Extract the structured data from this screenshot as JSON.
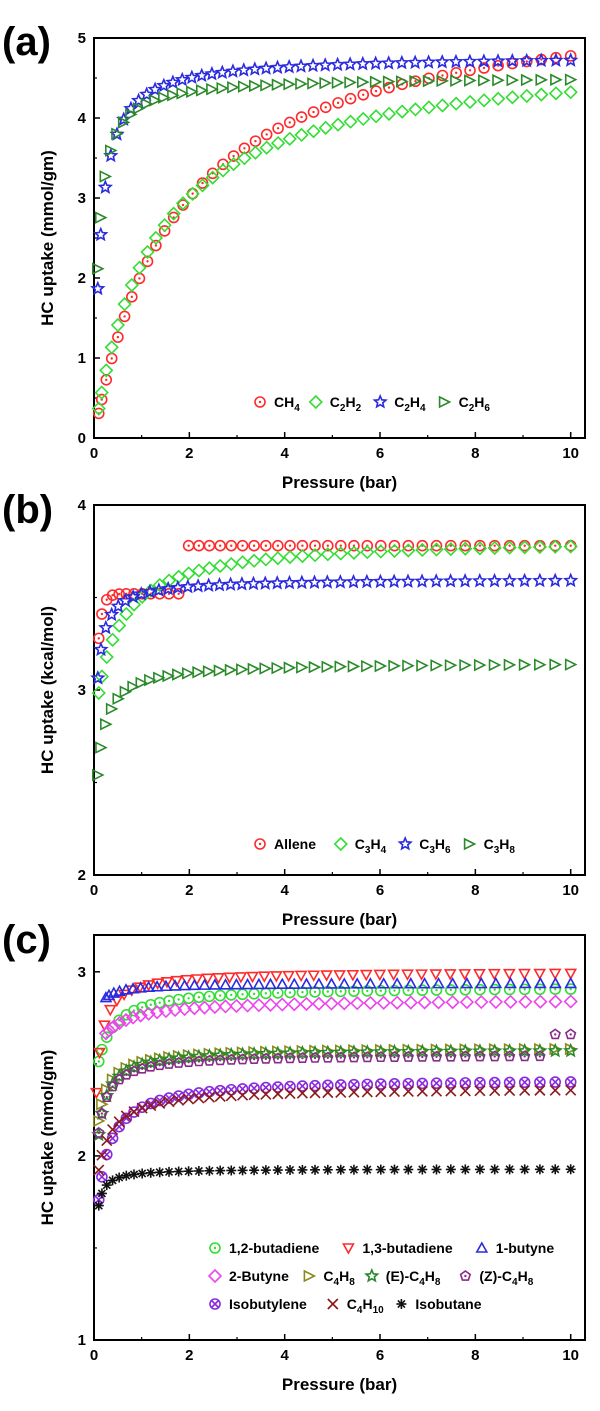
{
  "chart_data": [
    {
      "panel": "(a)",
      "type": "scatter",
      "xlabel": "Pressure (bar)",
      "ylabel": "HC uptake (mmol/gm)",
      "xlim": [
        0,
        10.3
      ],
      "ylim": [
        0,
        5
      ],
      "xticks": [
        0,
        2,
        4,
        6,
        8,
        10
      ],
      "yticks": [
        0,
        1,
        2,
        3,
        4,
        5
      ],
      "legend_position": "bottom-right",
      "series": [
        {
          "name": "CH4",
          "label": {
            "main": "CH",
            "parts": [
              [
                "4",
                true
              ]
            ]
          },
          "marker": "circle",
          "color": "#ff2a2a",
          "curve": "sat",
          "a": 5.6,
          "b": 0.58,
          "p0": 0.1,
          "p1": 10,
          "n": 44
        },
        {
          "name": "C2H2",
          "label": {
            "main": "C",
            "parts": [
              [
                "2",
                true
              ],
              [
                "H",
                false
              ],
              [
                "2",
                true
              ]
            ]
          },
          "marker": "diamond",
          "color": "#33dd33",
          "curve": "sat",
          "a": 4.85,
          "b": 0.82,
          "p0": 0.1,
          "p1": 10,
          "n": 44
        },
        {
          "name": "C2H4",
          "label": {
            "main": "C",
            "parts": [
              [
                "2",
                true
              ],
              [
                "H",
                false
              ],
              [
                "4",
                true
              ]
            ]
          },
          "marker": "star",
          "color": "#2a2ae0",
          "curve": "sat",
          "a": 4.78,
          "b": 8.0,
          "p0": 0.08,
          "p1": 10,
          "n": 44
        },
        {
          "name": "C2H6",
          "label": {
            "main": "C",
            "parts": [
              [
                "2",
                true
              ],
              [
                "H",
                false
              ],
              [
                "6",
                true
              ]
            ]
          },
          "marker": "triangle-right",
          "color": "#2a8a2a",
          "curve": "sat",
          "a": 4.52,
          "b": 11.0,
          "p0": 0.08,
          "p1": 10,
          "n": 44
        }
      ]
    },
    {
      "panel": "(b)",
      "type": "scatter",
      "xlabel": "Pressure (bar)",
      "ylabel": "HC uptake (kcal/mol)",
      "xlim": [
        0,
        10.3
      ],
      "ylim": [
        2,
        4
      ],
      "xticks": [
        0,
        2,
        4,
        6,
        8,
        10
      ],
      "yticks": [
        2,
        3,
        4
      ],
      "legend_position": "bottom-right",
      "series": [
        {
          "name": "Allene",
          "label": {
            "main": "Allene",
            "parts": []
          },
          "marker": "circle",
          "color": "#ff2a2a",
          "curve": "step",
          "start": 2.72,
          "plateau": 3.52,
          "pstep": 1.9,
          "high": 3.78,
          "p0": 0.1,
          "p1": 10,
          "n": 42
        },
        {
          "name": "C3H4",
          "label": {
            "main": "C",
            "parts": [
              [
                "3",
                true
              ],
              [
                "H",
                false
              ],
              [
                "4",
                true
              ]
            ]
          },
          "marker": "diamond",
          "color": "#33dd33",
          "curve": "sat",
          "offset": 2.8,
          "a": 1.02,
          "b": 2.2,
          "p0": 0.1,
          "p1": 10,
          "n": 42
        },
        {
          "name": "C3H6",
          "label": {
            "main": "C",
            "parts": [
              [
                "3",
                true
              ],
              [
                "H",
                false
              ],
              [
                "6",
                true
              ]
            ]
          },
          "marker": "star",
          "color": "#2a2ae0",
          "curve": "sat",
          "offset": 2.55,
          "a": 1.05,
          "b": 12.0,
          "p0": 0.08,
          "p1": 10,
          "n": 42
        },
        {
          "name": "C3H8",
          "label": {
            "main": "C",
            "parts": [
              [
                "3",
                true
              ],
              [
                "H",
                false
              ],
              [
                "8",
                true
              ]
            ]
          },
          "marker": "triangle-right",
          "color": "#2a8a2a",
          "curve": "sat",
          "offset": 2.15,
          "a": 1.0,
          "b": 8.0,
          "p0": 0.08,
          "p1": 10,
          "n": 42
        }
      ]
    },
    {
      "panel": "(c)",
      "type": "scatter",
      "xlabel": "Pressure (bar)",
      "ylabel": "HC uptake (mmol/gm)",
      "xlim": [
        0,
        10.3
      ],
      "ylim": [
        1,
        3.2
      ],
      "xticks": [
        0,
        2,
        4,
        6,
        8,
        10
      ],
      "yticks": [
        1,
        2,
        3
      ],
      "legend_position": "bottom-right",
      "series": [
        {
          "name": "1,2-butadiene",
          "label": {
            "main": "1,2-butadiene",
            "parts": []
          },
          "marker": "circle",
          "color": "#33dd33",
          "curve": "sat",
          "offset": 2.35,
          "a": 0.57,
          "b": 4.0,
          "p0": 0.1,
          "p1": 10,
          "n": 42
        },
        {
          "name": "1,3-butadiene",
          "label": {
            "main": "1,3-butadiene",
            "parts": []
          },
          "marker": "triangle-down",
          "color": "#ff2a2a",
          "curve": "sat",
          "offset": 1.95,
          "a": 1.05,
          "b": 12.0,
          "p0": 0.05,
          "p1": 10,
          "n": 42
        },
        {
          "name": "1-butyne",
          "label": {
            "main": "1-butyne",
            "parts": []
          },
          "marker": "triangle-up",
          "color": "#2a2ae0",
          "curve": "sat",
          "offset": 2.7,
          "a": 0.24,
          "b": 8.0,
          "p0": 0.25,
          "p1": 10,
          "n": 42
        },
        {
          "name": "2-Butyne",
          "label": {
            "main": "2-Butyne",
            "parts": []
          },
          "marker": "diamond",
          "color": "#ee44ee",
          "curve": "sat",
          "offset": 2.55,
          "a": 0.3,
          "b": 2.5,
          "p0": 0.25,
          "p1": 10,
          "n": 42
        },
        {
          "name": "C4H8",
          "label": {
            "main": "C",
            "parts": [
              [
                "4",
                true
              ],
              [
                "H",
                false
              ],
              [
                "8",
                true
              ]
            ]
          },
          "marker": "triangle-right",
          "color": "#8a8a1a",
          "curve": "sat",
          "offset": 1.87,
          "a": 0.72,
          "b": 8.0,
          "p0": 0.1,
          "p1": 10,
          "n": 42
        },
        {
          "name": "(E)-C4H8",
          "label": {
            "main": "(E)-C",
            "parts": [
              [
                "4",
                true
              ],
              [
                "H",
                false
              ],
              [
                "8",
                true
              ]
            ]
          },
          "marker": "star",
          "color": "#2a8a2a",
          "curve": "sat",
          "offset": 1.65,
          "a": 0.93,
          "b": 10.0,
          "p0": 0.1,
          "p1": 10,
          "n": 42
        },
        {
          "name": "(Z)-C4H8",
          "label": {
            "main": "(Z)-C",
            "parts": [
              [
                "4",
                true
              ],
              [
                "H",
                false
              ],
              [
                "8",
                true
              ]
            ]
          },
          "marker": "pentagon",
          "color": "#8a2a8a",
          "curve": "sat",
          "offset": 1.7,
          "a": 0.85,
          "b": 10.0,
          "p0": 0.1,
          "p1": 10,
          "n": 42,
          "tail": {
            "from": 9.6,
            "value": 2.66
          }
        },
        {
          "name": "Isobutylene",
          "label": {
            "main": "Isobutylene",
            "parts": []
          },
          "marker": "circle-x",
          "color": "#8a2adf",
          "curve": "sat",
          "offset": 1.4,
          "a": 1.02,
          "b": 5.5,
          "p0": 0.1,
          "p1": 10,
          "n": 42
        },
        {
          "name": "C4H10",
          "label": {
            "main": "C",
            "parts": [
              [
                "4",
                true
              ],
              [
                "H",
                false
              ],
              [
                "10",
                true
              ]
            ]
          },
          "marker": "x",
          "color": "#8a1a1a",
          "curve": "sat",
          "offset": 1.7,
          "a": 0.67,
          "b": 5.0,
          "p0": 0.1,
          "p1": 10,
          "n": 42
        },
        {
          "name": "Isobutane",
          "label": {
            "main": "Isobutane",
            "parts": []
          },
          "marker": "asterisk",
          "color": "#111111",
          "curve": "sat",
          "offset": 1.13,
          "a": 0.8,
          "b": 30.0,
          "p0": 0.1,
          "p1": 10,
          "n": 42
        }
      ]
    }
  ]
}
